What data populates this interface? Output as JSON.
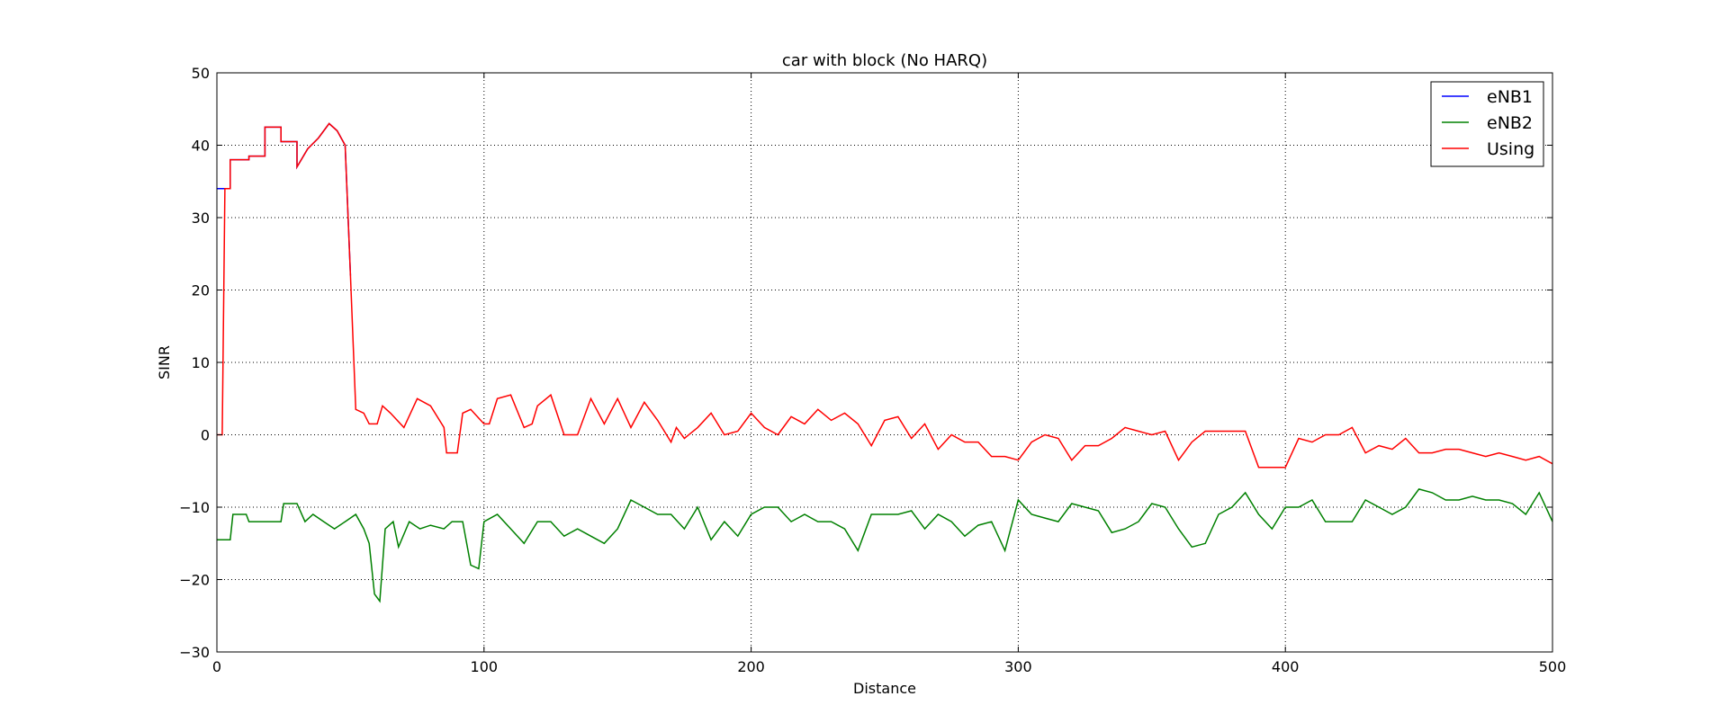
{
  "chart_data": {
    "type": "line",
    "title": "car with block (No HARQ)",
    "xlabel": "Distance",
    "ylabel": "SINR",
    "xlim": [
      0,
      500
    ],
    "ylim": [
      -30,
      50
    ],
    "xticks": [
      0,
      100,
      200,
      300,
      400,
      500
    ],
    "yticks": [
      -30,
      -20,
      -10,
      0,
      10,
      20,
      30,
      40,
      50
    ],
    "grid": true,
    "legend_position": "top-right",
    "legend": [
      "eNB1",
      "eNB2",
      "Using"
    ],
    "colors": {
      "eNB1": "#0000ff",
      "eNB2": "#008000",
      "Using": "#ff0000"
    },
    "series": [
      {
        "name": "eNB1",
        "x": [
          0,
          5,
          5,
          12,
          12,
          18,
          18,
          24,
          24,
          30,
          30,
          34,
          38,
          42,
          45,
          48,
          50
        ],
        "y": [
          34,
          34,
          38,
          38,
          38.5,
          38.5,
          42.5,
          42.5,
          40.5,
          40.5,
          37,
          39.5,
          41,
          43,
          42,
          40,
          22
        ]
      },
      {
        "name": "eNB2",
        "x": [
          0,
          5,
          6,
          11,
          12,
          17,
          18,
          24,
          25,
          30,
          33,
          36,
          40,
          44,
          48,
          52,
          55,
          57,
          59,
          61,
          63,
          66,
          68,
          72,
          76,
          80,
          85,
          88,
          92,
          95,
          98,
          100,
          105,
          110,
          115,
          120,
          125,
          130,
          135,
          140,
          145,
          150,
          155,
          160,
          165,
          170,
          175,
          180,
          185,
          190,
          195,
          200,
          205,
          210,
          215,
          220,
          225,
          230,
          235,
          240,
          245,
          250,
          255,
          260,
          265,
          270,
          275,
          280,
          285,
          290,
          295,
          300,
          305,
          310,
          315,
          320,
          325,
          330,
          335,
          340,
          345,
          350,
          355,
          360,
          365,
          370,
          375,
          380,
          385,
          390,
          395,
          400,
          405,
          410,
          415,
          420,
          425,
          430,
          435,
          440,
          445,
          450,
          455,
          460,
          465,
          470,
          475,
          480,
          485,
          490,
          495,
          500
        ],
        "y": [
          -14.5,
          -14.5,
          -11,
          -11,
          -12,
          -12,
          -12,
          -12,
          -9.5,
          -9.5,
          -12,
          -11,
          -12,
          -13,
          -12,
          -11,
          -13,
          -15,
          -22,
          -23,
          -13,
          -12,
          -15.5,
          -12,
          -13,
          -12.5,
          -13,
          -12,
          -12,
          -18,
          -18.5,
          -12,
          -11,
          -13,
          -15,
          -12,
          -12,
          -14,
          -13,
          -14,
          -15,
          -13,
          -9,
          -10,
          -11,
          -11,
          -13,
          -10,
          -14.5,
          -12,
          -14,
          -11,
          -10,
          -10,
          -12,
          -11,
          -12,
          -12,
          -13,
          -16,
          -11,
          -11,
          -11,
          -10.5,
          -13,
          -11,
          -12,
          -14,
          -12.5,
          -12,
          -16,
          -9,
          -11,
          -11.5,
          -12,
          -9.5,
          -10,
          -10.5,
          -13.5,
          -13,
          -12,
          -9.5,
          -10,
          -13,
          -15.5,
          -15,
          -11,
          -10,
          -8,
          -11,
          -13,
          -10,
          -10,
          -9,
          -12,
          -12,
          -12,
          -9,
          -10,
          -11,
          -10,
          -7.5,
          -8,
          -9,
          -9,
          -8.5,
          -9,
          -9,
          -9.5,
          -11,
          -8,
          -12
        ]
      },
      {
        "name": "Using",
        "x": [
          0,
          2,
          3,
          5,
          5,
          12,
          12,
          18,
          18,
          24,
          24,
          30,
          30,
          34,
          38,
          42,
          45,
          48,
          50,
          52,
          55,
          57,
          60,
          62,
          65,
          70,
          75,
          80,
          85,
          86,
          90,
          92,
          95,
          100,
          102,
          105,
          110,
          115,
          118,
          120,
          125,
          130,
          135,
          140,
          145,
          150,
          155,
          160,
          165,
          170,
          172,
          175,
          180,
          185,
          190,
          195,
          200,
          205,
          210,
          215,
          220,
          225,
          230,
          235,
          240,
          245,
          250,
          255,
          260,
          265,
          270,
          275,
          280,
          285,
          290,
          295,
          300,
          305,
          310,
          315,
          320,
          325,
          330,
          335,
          340,
          345,
          350,
          355,
          360,
          365,
          370,
          375,
          380,
          385,
          390,
          395,
          400,
          405,
          410,
          415,
          420,
          425,
          430,
          435,
          440,
          445,
          450,
          455,
          460,
          465,
          470,
          475,
          480,
          485,
          490,
          495,
          500
        ],
        "y": [
          0,
          0,
          34,
          34,
          38,
          38,
          38.5,
          38.5,
          42.5,
          42.5,
          40.5,
          40.5,
          37,
          39.5,
          41,
          43,
          42,
          40,
          22,
          3.5,
          3,
          1.5,
          1.5,
          4,
          3,
          1,
          5,
          4,
          1,
          -2.5,
          -2.5,
          3,
          3.5,
          1.5,
          1.5,
          5,
          5.5,
          1,
          1.5,
          4,
          5.5,
          0,
          0,
          5,
          1.5,
          5,
          1,
          4.5,
          2,
          -1,
          1,
          -0.5,
          1,
          3,
          0,
          0.5,
          3,
          1,
          0,
          2.5,
          1.5,
          3.5,
          2,
          3,
          1.5,
          -1.5,
          2,
          2.5,
          -0.5,
          1.5,
          -2,
          0,
          -1,
          -1,
          -3,
          -3,
          -3.5,
          -1,
          0,
          -0.5,
          -3.5,
          -1.5,
          -1.5,
          -0.5,
          1,
          0.5,
          0,
          0.5,
          -3.5,
          -1,
          0.5,
          0.5,
          0.5,
          0.5,
          -4.5,
          -4.5,
          -4.5,
          -0.5,
          -1,
          0,
          0,
          1,
          -2.5,
          -1.5,
          -2,
          -0.5,
          -2.5,
          -2.5,
          -2,
          -2,
          -2.5,
          -3,
          -2.5,
          -3,
          -3.5,
          -3,
          -4
        ]
      }
    ]
  }
}
